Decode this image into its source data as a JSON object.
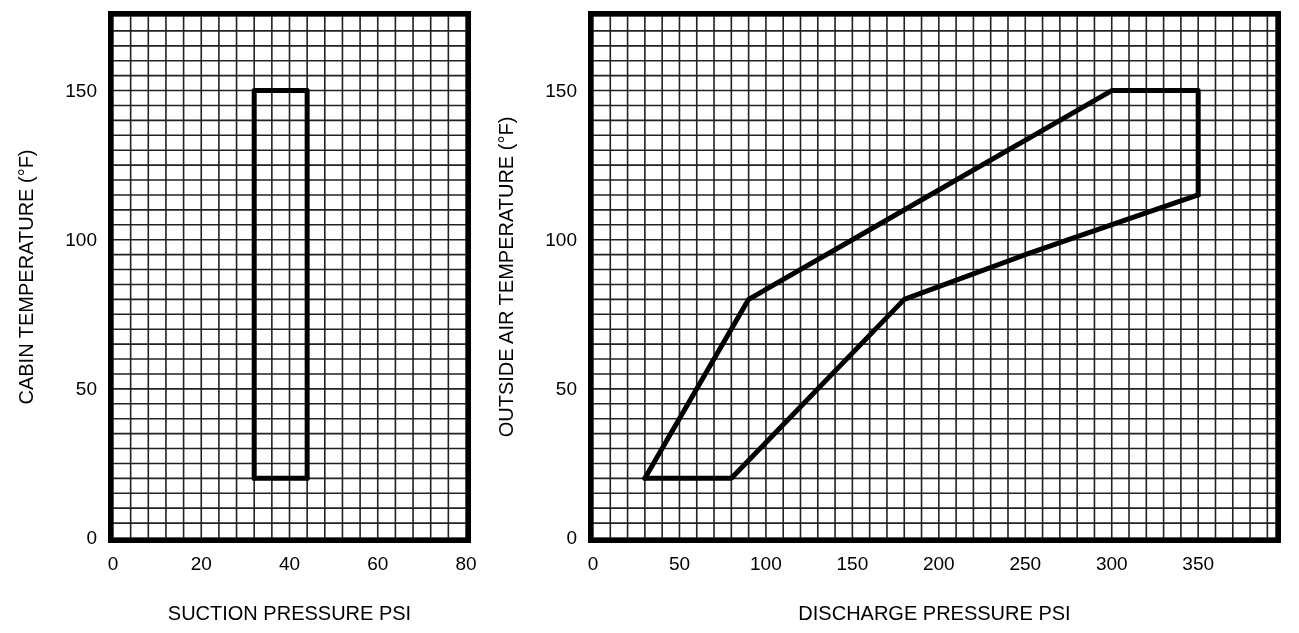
{
  "chart_data": [
    {
      "type": "line",
      "xlabel": "SUCTION PRESSURE PSI",
      "ylabel": "CABIN TEMPERATURE (°F)",
      "xlim": [
        0,
        80
      ],
      "ylim": [
        0,
        175
      ],
      "grid": true,
      "marker": "none",
      "line_style": "solid",
      "xticks": [
        0,
        {
          "value": 4,
          "label": null
        },
        {
          "value": 8,
          "label": null
        },
        {
          "value": 12,
          "label": null
        },
        {
          "value": 16,
          "label": null
        },
        20,
        {
          "value": 24,
          "label": null
        },
        {
          "value": 28,
          "label": null
        },
        {
          "value": 32,
          "label": null
        },
        {
          "value": 36,
          "label": null
        },
        40,
        {
          "value": 44,
          "label": null
        },
        {
          "value": 48,
          "label": null
        },
        {
          "value": 52,
          "label": null
        },
        {
          "value": 56,
          "label": null
        },
        60,
        {
          "value": 64,
          "label": null
        },
        {
          "value": 68,
          "label": null
        },
        {
          "value": 72,
          "label": null
        },
        {
          "value": 76,
          "label": null
        },
        80
      ],
      "yticks": [
        0,
        {
          "value": 5,
          "label": null
        },
        {
          "value": 10,
          "label": null
        },
        {
          "value": 15,
          "label": null
        },
        {
          "value": 20,
          "label": null
        },
        {
          "value": 25,
          "label": null
        },
        {
          "value": 30,
          "label": null
        },
        {
          "value": 35,
          "label": null
        },
        {
          "value": 40,
          "label": null
        },
        {
          "value": 45,
          "label": null
        },
        50,
        {
          "value": 55,
          "label": null
        },
        {
          "value": 60,
          "label": null
        },
        {
          "value": 65,
          "label": null
        },
        {
          "value": 70,
          "label": null
        },
        {
          "value": 75,
          "label": null
        },
        {
          "value": 80,
          "label": null
        },
        {
          "value": 85,
          "label": null
        },
        {
          "value": 90,
          "label": null
        },
        {
          "value": 95,
          "label": null
        },
        100,
        {
          "value": 105,
          "label": null
        },
        {
          "value": 110,
          "label": null
        },
        {
          "value": 115,
          "label": null
        },
        {
          "value": 120,
          "label": null
        },
        {
          "value": 125,
          "label": null
        },
        {
          "value": 130,
          "label": null
        },
        {
          "value": 135,
          "label": null
        },
        {
          "value": 140,
          "label": null
        },
        {
          "value": 145,
          "label": null
        },
        150,
        {
          "value": 155,
          "label": null
        },
        {
          "value": 160,
          "label": null
        },
        {
          "value": 165,
          "label": null
        },
        {
          "value": 170,
          "label": null
        },
        {
          "value": 175,
          "label": null
        }
      ],
      "series": [
        {
          "color": "#000000",
          "x": [
            32,
            32,
            44,
            44
          ],
          "values": [
            20,
            150,
            150,
            20
          ]
        },
        {
          "color": "#000000",
          "x": [
            32,
            44
          ],
          "values": [
            20,
            20
          ]
        }
      ]
    },
    {
      "type": "line",
      "xlabel": "DISCHARGE PRESSURE PSI",
      "ylabel": "OUTSIDE AIR TEMPERATURE (°F)",
      "xlim": [
        0,
        395
      ],
      "ylim": [
        0,
        175
      ],
      "grid": true,
      "marker": "none",
      "line_style": "solid",
      "xticks": [
        0,
        {
          "value": 10,
          "label": null
        },
        {
          "value": 20,
          "label": null
        },
        {
          "value": 30,
          "label": null
        },
        {
          "value": 40,
          "label": null
        },
        50,
        {
          "value": 60,
          "label": null
        },
        {
          "value": 70,
          "label": null
        },
        {
          "value": 80,
          "label": null
        },
        {
          "value": 90,
          "label": null
        },
        100,
        {
          "value": 110,
          "label": null
        },
        {
          "value": 120,
          "label": null
        },
        {
          "value": 130,
          "label": null
        },
        {
          "value": 140,
          "label": null
        },
        150,
        {
          "value": 160,
          "label": null
        },
        {
          "value": 170,
          "label": null
        },
        {
          "value": 180,
          "label": null
        },
        {
          "value": 190,
          "label": null
        },
        200,
        {
          "value": 210,
          "label": null
        },
        {
          "value": 220,
          "label": null
        },
        {
          "value": 230,
          "label": null
        },
        {
          "value": 240,
          "label": null
        },
        250,
        {
          "value": 260,
          "label": null
        },
        {
          "value": 270,
          "label": null
        },
        {
          "value": 280,
          "label": null
        },
        {
          "value": 290,
          "label": null
        },
        300,
        {
          "value": 310,
          "label": null
        },
        {
          "value": 320,
          "label": null
        },
        {
          "value": 330,
          "label": null
        },
        {
          "value": 340,
          "label": null
        },
        350,
        {
          "value": 360,
          "label": null
        },
        {
          "value": 370,
          "label": null
        },
        {
          "value": 380,
          "label": null
        },
        {
          "value": 390,
          "label": null
        }
      ],
      "yticks": [
        0,
        {
          "value": 5,
          "label": null
        },
        {
          "value": 10,
          "label": null
        },
        {
          "value": 15,
          "label": null
        },
        {
          "value": 20,
          "label": null
        },
        {
          "value": 25,
          "label": null
        },
        {
          "value": 30,
          "label": null
        },
        {
          "value": 35,
          "label": null
        },
        {
          "value": 40,
          "label": null
        },
        {
          "value": 45,
          "label": null
        },
        50,
        {
          "value": 55,
          "label": null
        },
        {
          "value": 60,
          "label": null
        },
        {
          "value": 65,
          "label": null
        },
        {
          "value": 70,
          "label": null
        },
        {
          "value": 75,
          "label": null
        },
        {
          "value": 80,
          "label": null
        },
        {
          "value": 85,
          "label": null
        },
        {
          "value": 90,
          "label": null
        },
        {
          "value": 95,
          "label": null
        },
        100,
        {
          "value": 105,
          "label": null
        },
        {
          "value": 110,
          "label": null
        },
        {
          "value": 115,
          "label": null
        },
        {
          "value": 120,
          "label": null
        },
        {
          "value": 125,
          "label": null
        },
        {
          "value": 130,
          "label": null
        },
        {
          "value": 135,
          "label": null
        },
        {
          "value": 140,
          "label": null
        },
        {
          "value": 145,
          "label": null
        },
        150,
        {
          "value": 155,
          "label": null
        },
        {
          "value": 160,
          "label": null
        },
        {
          "value": 165,
          "label": null
        },
        {
          "value": 170,
          "label": null
        },
        {
          "value": 175,
          "label": null
        }
      ],
      "series": [
        {
          "color": "#000000",
          "x": [
            30,
            90,
            150,
            300,
            350,
            350
          ],
          "values": [
            20,
            80,
            100,
            150,
            150,
            115
          ]
        },
        {
          "color": "#000000",
          "x": [
            30,
            80,
            180,
            250,
            275,
            350
          ],
          "values": [
            20,
            20,
            80,
            95,
            100,
            115
          ]
        }
      ]
    }
  ]
}
